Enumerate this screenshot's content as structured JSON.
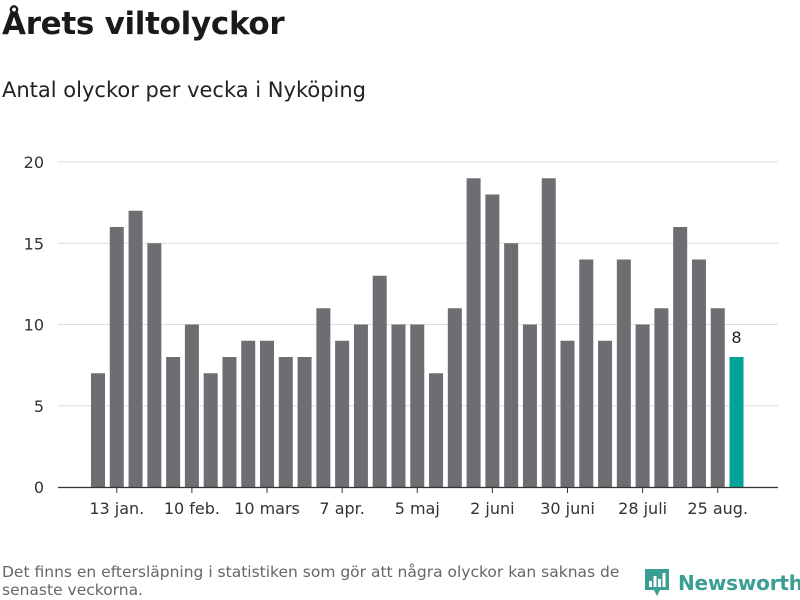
{
  "header": {
    "title": "Årets viltolyckor",
    "subtitle": "Antal olyckor per vecka i Nyköping"
  },
  "chart_data": {
    "type": "bar",
    "title": "Årets viltolyckor",
    "subtitle": "Antal olyckor per vecka i Nyköping",
    "xlabel": "",
    "ylabel": "",
    "ylim": [
      0,
      20
    ],
    "y_ticks": [
      0,
      5,
      10,
      15,
      20
    ],
    "grid": true,
    "bar_color": "#6e6d72",
    "highlight_color": "#00a398",
    "values": [
      7,
      16,
      17,
      15,
      8,
      10,
      7,
      8,
      9,
      9,
      8,
      8,
      11,
      9,
      10,
      13,
      10,
      10,
      7,
      11,
      19,
      18,
      15,
      10,
      19,
      9,
      14,
      9,
      14,
      10,
      11,
      16,
      14,
      11,
      8
    ],
    "highlight_index": 34,
    "highlight_label": "8",
    "x_tick_labels": [
      {
        "label": "13 jan.",
        "index": 1
      },
      {
        "label": "10 feb.",
        "index": 5
      },
      {
        "label": "10 mars",
        "index": 9
      },
      {
        "label": "7 apr.",
        "index": 13
      },
      {
        "label": "5 maj",
        "index": 17
      },
      {
        "label": "2 juni",
        "index": 21
      },
      {
        "label": "30 juni",
        "index": 25
      },
      {
        "label": "28 juli",
        "index": 29
      },
      {
        "label": "25 aug.",
        "index": 33
      }
    ]
  },
  "footer": {
    "note": "Det finns en eftersläpning i statistiken som gör att några olyckor kan saknas de senaste veckorna.",
    "brand": "Newsworthy",
    "brand_icon": "bar-chart-logo-icon",
    "brand_color": "#3a9e94"
  }
}
